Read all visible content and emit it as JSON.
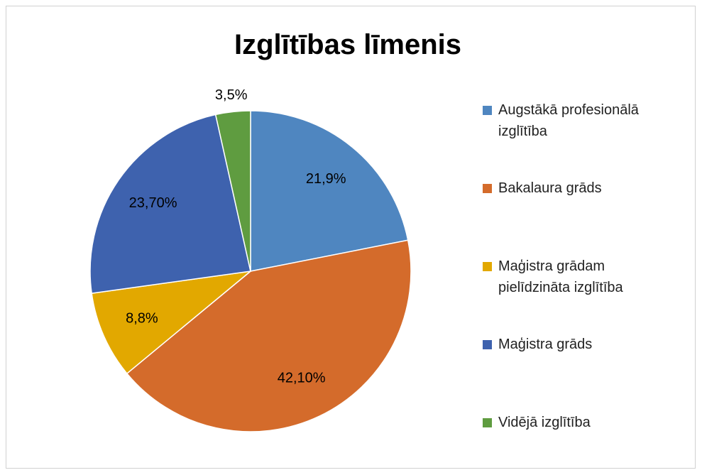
{
  "chart_data": {
    "type": "pie",
    "title": "Izglītības līmenis",
    "categories": [
      "Augstākā profesionālā izglītība",
      "Bakalaura grāds",
      "Maģistra grādam pielīdzināta izglītība",
      "Maģistra grāds",
      "Vidējā izglītība"
    ],
    "values": [
      21.9,
      42.1,
      8.8,
      23.7,
      3.5
    ],
    "value_labels": [
      "21,9%",
      "42,10%",
      "8,8%",
      "23,70%",
      "3,5%"
    ],
    "colors": [
      "#4f86c0",
      "#d46b2b",
      "#e2a800",
      "#3e62ae",
      "#5f9c40"
    ],
    "legend": "right"
  }
}
